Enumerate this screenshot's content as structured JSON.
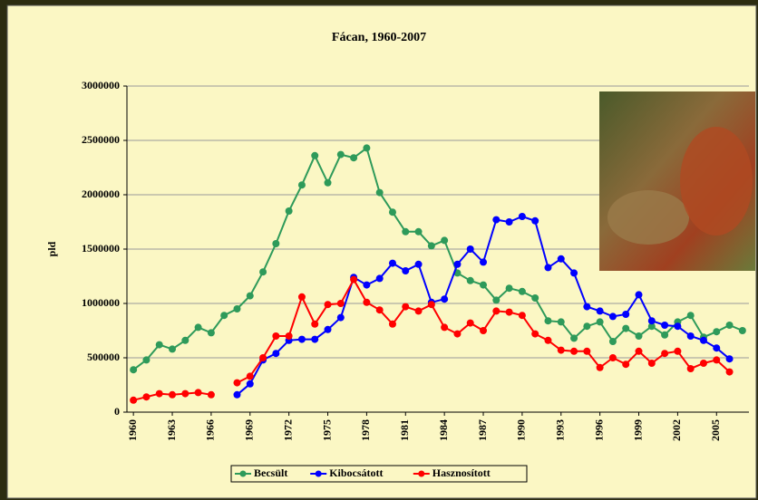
{
  "chart_data": {
    "type": "line",
    "title": "Fácan, 1960-2007",
    "y_label": "pld",
    "x": [
      1960,
      1961,
      1962,
      1963,
      1964,
      1965,
      1966,
      1967,
      1968,
      1969,
      1970,
      1971,
      1972,
      1973,
      1974,
      1975,
      1976,
      1977,
      1978,
      1979,
      1980,
      1981,
      1982,
      1983,
      1984,
      1985,
      1986,
      1987,
      1988,
      1989,
      1990,
      1991,
      1992,
      1993,
      1994,
      1995,
      1996,
      1997,
      1998,
      1999,
      2000,
      2001,
      2002,
      2003,
      2004,
      2005,
      2006,
      2007
    ],
    "xlim": [
      1959.5,
      2007.5
    ],
    "xticks": [
      1960,
      1963,
      1966,
      1969,
      1972,
      1975,
      1978,
      1981,
      1984,
      1987,
      1990,
      1993,
      1996,
      1999,
      2002,
      2005
    ],
    "ylim": [
      0,
      3000000
    ],
    "yticks": [
      0,
      500000,
      1000000,
      1500000,
      2000000,
      2500000,
      3000000
    ],
    "grid": true,
    "legend": "bottom",
    "series": [
      {
        "name": "Becsült",
        "color": "#2e9a5a",
        "values": [
          390000,
          480000,
          620000,
          580000,
          660000,
          780000,
          730000,
          890000,
          950000,
          1070000,
          1290000,
          1550000,
          1850000,
          2090000,
          2360000,
          2110000,
          2370000,
          2340000,
          2430000,
          2020000,
          1840000,
          1660000,
          1660000,
          1530000,
          1580000,
          1280000,
          1210000,
          1170000,
          1030000,
          1140000,
          1110000,
          1050000,
          840000,
          830000,
          680000,
          790000,
          830000,
          650000,
          770000,
          700000,
          790000,
          710000,
          830000,
          890000,
          690000,
          740000,
          800000,
          750000
        ]
      },
      {
        "name": "Kibocsátott",
        "color": "#0000ff",
        "values": [
          null,
          null,
          null,
          null,
          null,
          null,
          null,
          null,
          160000,
          260000,
          480000,
          540000,
          660000,
          670000,
          670000,
          760000,
          870000,
          1240000,
          1170000,
          1230000,
          1370000,
          1300000,
          1360000,
          1010000,
          1040000,
          1360000,
          1500000,
          1380000,
          1770000,
          1750000,
          1800000,
          1760000,
          1330000,
          1410000,
          1280000,
          970000,
          930000,
          880000,
          900000,
          1080000,
          840000,
          800000,
          790000,
          700000,
          660000,
          590000,
          490000,
          null
        ]
      },
      {
        "name": "Hasznosított",
        "color": "#ff0000",
        "values": [
          110000,
          140000,
          170000,
          160000,
          170000,
          180000,
          160000,
          null,
          270000,
          330000,
          500000,
          700000,
          700000,
          1060000,
          810000,
          990000,
          1000000,
          1220000,
          1010000,
          940000,
          810000,
          970000,
          930000,
          990000,
          780000,
          720000,
          820000,
          750000,
          930000,
          920000,
          890000,
          720000,
          660000,
          570000,
          560000,
          560000,
          410000,
          500000,
          440000,
          560000,
          450000,
          540000,
          560000,
          400000,
          450000,
          480000,
          370000,
          null
        ]
      }
    ]
  }
}
